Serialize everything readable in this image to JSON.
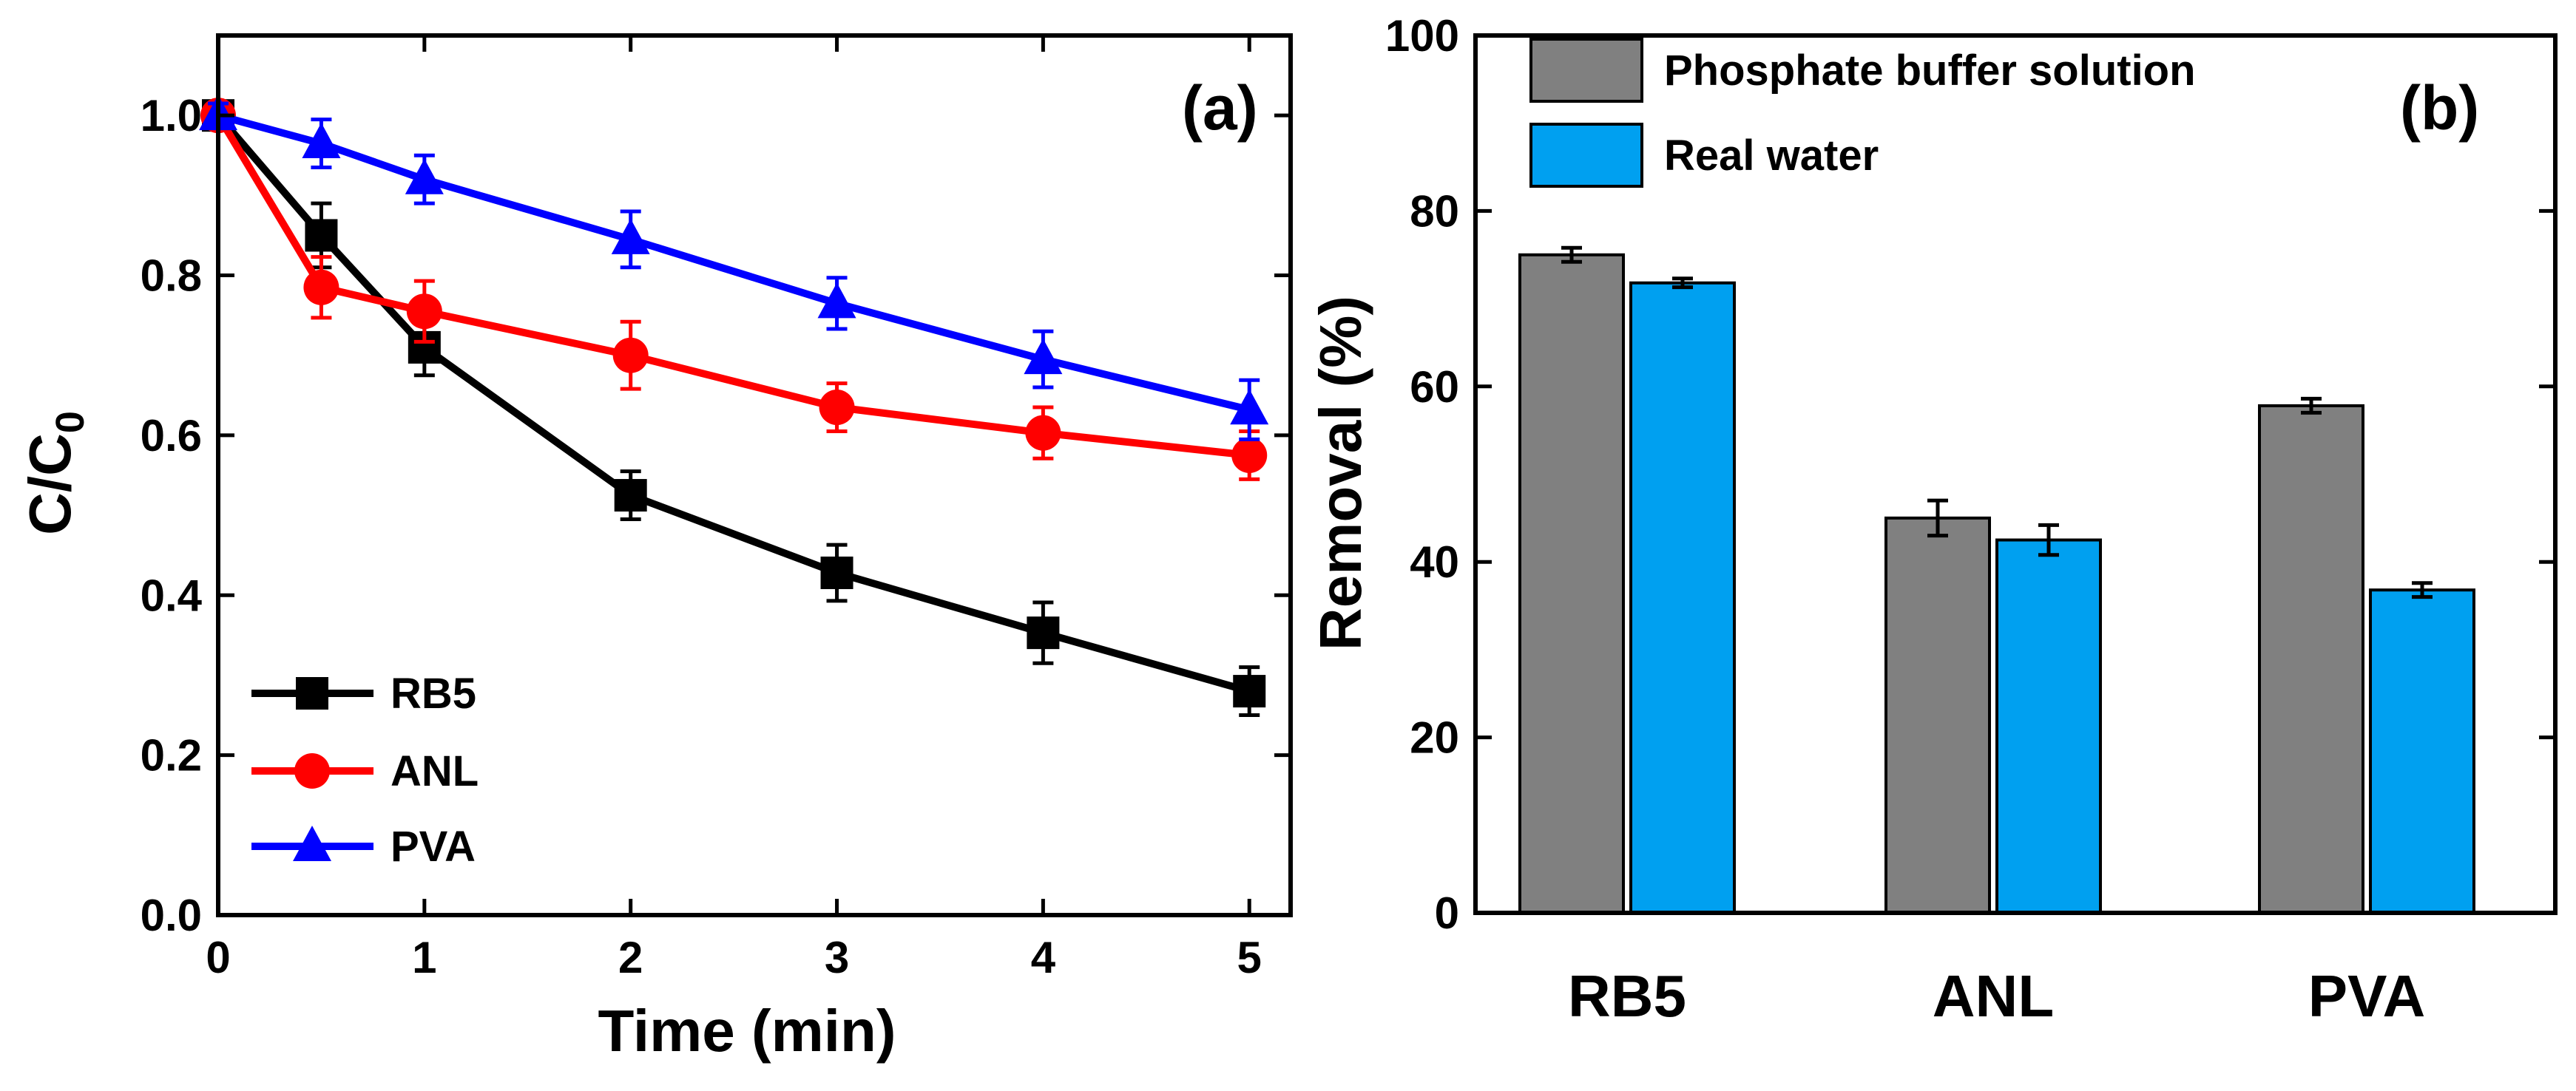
{
  "chart_data": [
    {
      "panel": "(a)",
      "type": "line",
      "xlabel": "Time (min)",
      "ylabel_main": "C/C",
      "ylabel_sub": "0",
      "xlim": [
        0,
        5.2
      ],
      "ylim": [
        0,
        1.1
      ],
      "xticks": [
        0,
        1,
        2,
        3,
        4,
        5
      ],
      "xtick_labels": [
        "0",
        "1",
        "2",
        "3",
        "4",
        "5"
      ],
      "yticks": [
        0,
        0.2,
        0.4,
        0.6,
        0.8,
        1.0
      ],
      "ytick_labels": [
        "0.0",
        "0.2",
        "0.4",
        "0.6",
        "0.8",
        "1.0"
      ],
      "legend_position": "bottom-left",
      "series": [
        {
          "name": "RB5",
          "color": "#000000",
          "marker": "square",
          "x": [
            0,
            0.5,
            1,
            2,
            3,
            4,
            5
          ],
          "y": [
            1.0,
            0.85,
            0.71,
            0.525,
            0.428,
            0.353,
            0.28
          ],
          "err": [
            0.015,
            0.04,
            0.035,
            0.03,
            0.035,
            0.038,
            0.03
          ]
        },
        {
          "name": "ANL",
          "color": "#ff0000",
          "marker": "circle",
          "x": [
            0,
            0.5,
            1,
            2,
            3,
            4,
            5
          ],
          "y": [
            1.0,
            0.785,
            0.755,
            0.7,
            0.635,
            0.603,
            0.575
          ],
          "err": [
            0.015,
            0.038,
            0.038,
            0.042,
            0.03,
            0.032,
            0.03
          ]
        },
        {
          "name": "PVA",
          "color": "#0000ff",
          "marker": "triangle",
          "x": [
            0,
            0.5,
            1,
            2,
            3,
            4,
            5
          ],
          "y": [
            1.0,
            0.965,
            0.92,
            0.845,
            0.765,
            0.695,
            0.632
          ],
          "err": [
            0.015,
            0.03,
            0.03,
            0.035,
            0.032,
            0.035,
            0.037
          ]
        }
      ]
    },
    {
      "panel": "(b)",
      "type": "bar",
      "ylabel": "Removal (%)",
      "ylim": [
        0,
        100
      ],
      "yticks": [
        0,
        20,
        40,
        60,
        80,
        100
      ],
      "ytick_labels": [
        "0",
        "20",
        "40",
        "60",
        "80",
        "100"
      ],
      "categories": [
        "RB5",
        "ANL",
        "PVA"
      ],
      "legend_position": "top-left",
      "series": [
        {
          "name": "Phosphate buffer solution",
          "color": "#808080",
          "values": [
            75.0,
            45.0,
            57.8
          ],
          "err": [
            0.8,
            2.0,
            0.8
          ]
        },
        {
          "name": "Real water",
          "color": "#00a0f0",
          "values": [
            71.8,
            42.5,
            36.8
          ],
          "err": [
            0.5,
            1.7,
            0.8
          ]
        }
      ]
    }
  ]
}
